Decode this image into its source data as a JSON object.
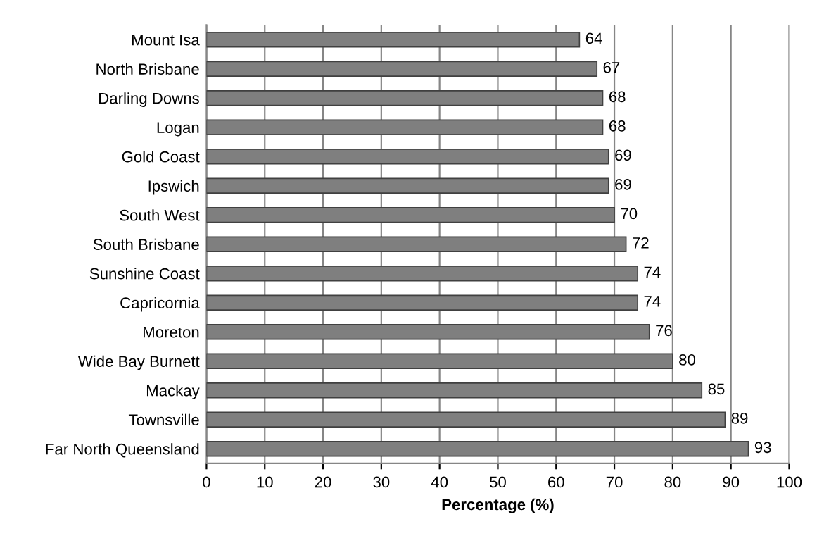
{
  "chart_data": {
    "type": "bar",
    "orientation": "horizontal",
    "xlabel": "Percentage (%)",
    "categories": [
      "Mount Isa",
      "North Brisbane",
      "Darling Downs",
      "Logan",
      "Gold Coast",
      "Ipswich",
      "South West",
      "South Brisbane",
      "Sunshine Coast",
      "Capricornia",
      "Moreton",
      "Wide Bay Burnett",
      "Mackay",
      "Townsville",
      "Far North Queensland"
    ],
    "values": [
      64,
      67,
      68,
      68,
      69,
      69,
      70,
      72,
      74,
      74,
      76,
      80,
      85,
      89,
      93
    ],
    "color": "#7f7f7f",
    "xlim": [
      0,
      100
    ],
    "xticks": [
      0,
      10,
      20,
      30,
      40,
      50,
      60,
      70,
      80,
      90,
      100
    ],
    "grid": "x",
    "data_labels": true
  }
}
